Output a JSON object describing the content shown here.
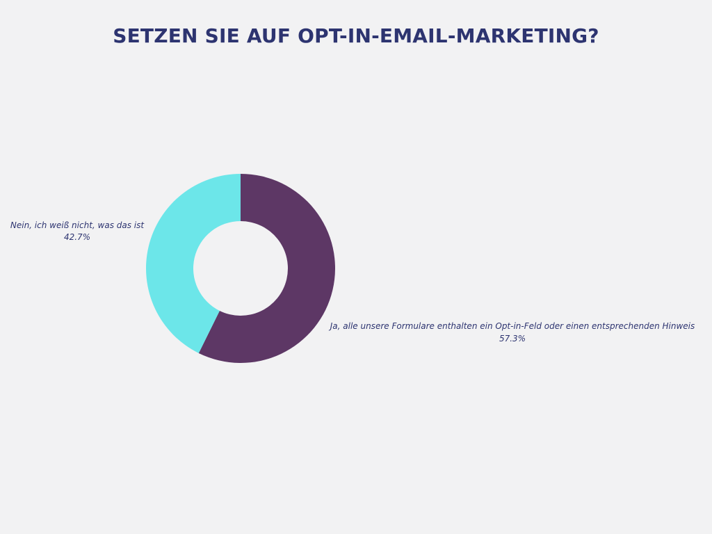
{
  "chart_data": {
    "type": "pie",
    "variant": "donut",
    "title": "SETZEN SIE AUF OPT-IN-EMAIL-MARKETING?",
    "start": "top",
    "direction": "clockwise",
    "slices": [
      {
        "label": "Ja, alle unsere Formulare enthalten ein Opt-in-Feld oder einen entsprechenden Hinweis",
        "value": 57.3,
        "value_label": "57.3%",
        "color": "#5d3765",
        "label_side": "right"
      },
      {
        "label": "Nein, ich weiß nicht, was das ist",
        "value": 42.7,
        "value_label": "42.7%",
        "color": "#6ce6e9",
        "label_side": "left"
      }
    ],
    "legend": "none",
    "background": "#f2f2f3",
    "text_color": "#2d3470"
  }
}
